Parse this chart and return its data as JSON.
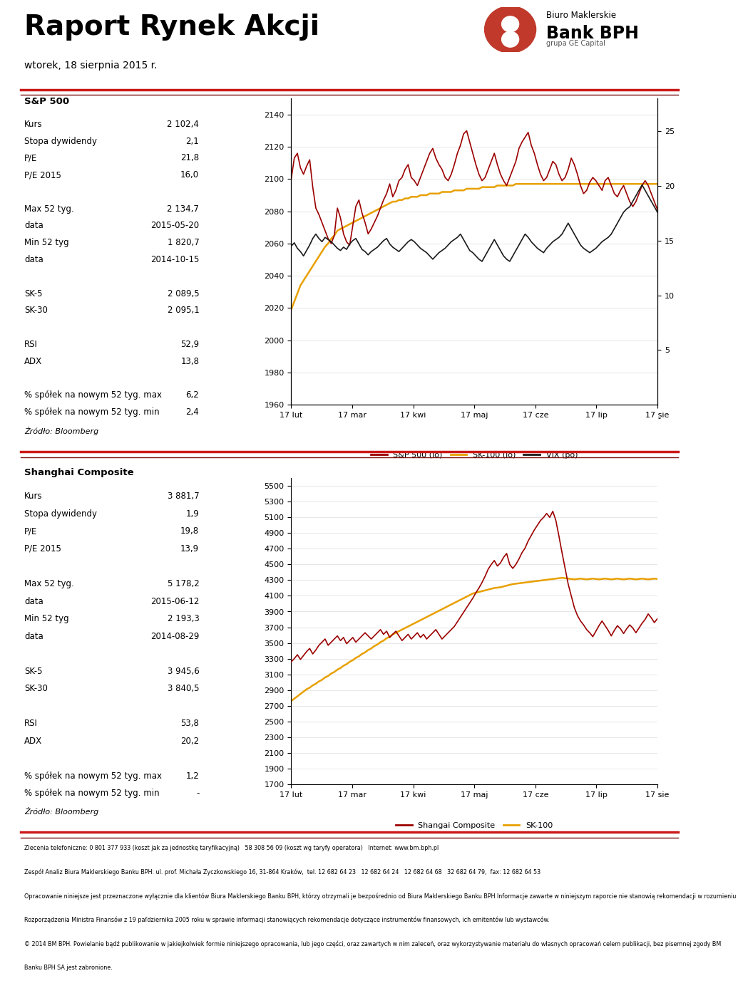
{
  "title": "Raport Rynek Akcji",
  "date": "wtorek, 18 sierpnia 2015 r.",
  "logo_text1": "Biuro Maklerskie",
  "logo_text2": "Bank BPH",
  "logo_text3": "grupa GE Capital",
  "sp500_label": "S&P 500",
  "sp500_data": [
    {
      "label": "Kurs",
      "value": "2 102,4"
    },
    {
      "label": "Stopa dywidendy",
      "value": "2,1"
    },
    {
      "label": "P/E",
      "value": "21,8"
    },
    {
      "label": "P/E 2015",
      "value": "16,0"
    },
    {
      "label": "",
      "value": ""
    },
    {
      "label": "Max 52 tyg.",
      "value": "2 134,7"
    },
    {
      "label": "data",
      "value": "2015-05-20"
    },
    {
      "label": "Min 52 tyg",
      "value": "1 820,7"
    },
    {
      "label": "data",
      "value": "2014-10-15"
    },
    {
      "label": "",
      "value": ""
    },
    {
      "label": "SK-5",
      "value": "2 089,5"
    },
    {
      "label": "SK-30",
      "value": "2 095,1"
    },
    {
      "label": "",
      "value": ""
    },
    {
      "label": "RSI",
      "value": "52,9"
    },
    {
      "label": "ADX",
      "value": "13,8"
    },
    {
      "label": "",
      "value": ""
    },
    {
      "label": "% spółek na nowym 52 tyg. max",
      "value": "6,2"
    },
    {
      "label": "% spółek na nowym 52 tyg. min",
      "value": "2,4"
    }
  ],
  "shanghai_label": "Shanghai Composite",
  "shanghai_data": [
    {
      "label": "Kurs",
      "value": "3 881,7"
    },
    {
      "label": "Stopa dywidendy",
      "value": "1,9"
    },
    {
      "label": "P/E",
      "value": "19,8"
    },
    {
      "label": "P/E 2015",
      "value": "13,9"
    },
    {
      "label": "",
      "value": ""
    },
    {
      "label": "Max 52 tyg.",
      "value": "5 178,2"
    },
    {
      "label": "data",
      "value": "2015-06-12"
    },
    {
      "label": "Min 52 tyg",
      "value": "2 193,3"
    },
    {
      "label": "data",
      "value": "2014-08-29"
    },
    {
      "label": "",
      "value": ""
    },
    {
      "label": "SK-5",
      "value": "3 945,6"
    },
    {
      "label": "SK-30",
      "value": "3 840,5"
    },
    {
      "label": "",
      "value": ""
    },
    {
      "label": "RSI",
      "value": "53,8"
    },
    {
      "label": "ADX",
      "value": "20,2"
    },
    {
      "label": "",
      "value": ""
    },
    {
      "label": "% spółek na nowym 52 tyg. max",
      "value": "1,2"
    },
    {
      "label": "% spółek na nowym 52 tyg. min",
      "value": "-"
    }
  ],
  "footer_source": "Źródło: Bloomberg",
  "footer_legal1": "Zlecenia telefoniczne: 0 801 377 933 (koszt jak za jednostkę taryfikacyjną)   58 308 56 09 (koszt wg taryfy operatora)   Internet: www.bm.bph.pl",
  "footer_legal2": "Zespół Analiz Biura Maklerskiego Banku BPH: ul. prof. Michała Zyczkowskiego 16, 31-864 Kraków,  tel. 12 682 64 23   12 682 64 24   12 682 64 68   32 682 64 79,  fax: 12 682 64 53",
  "footer_legal3": "Opracowanie niniejsze jest przeznaczone wyłącznie dla klientów Biura Maklerskiego Banku BPH, którzy otrzymali je bezpośrednio od Biura Maklerskiego Banku BPH Informacje zawarte w niniejszym raporcie nie stanowią rekomendacji w rozumieniu",
  "footer_legal4": "Rozporządzenia Ministra Finansów z 19 paſdziernika 2005 roku w sprawie informacji stanowiących rekomendacje dotyczące instrumentów finansowych, ich emitentów lub wystawców.",
  "footer_legal5": "© 2014 BM BPH. Powielanie bądź publikowanie w jakiejkolwiek formie niniejszego opracowania, lub jego części, oraz zawartych w nim zaleceń, oraz wykorzystywanie materiału do własnych opracowań celem publikacji, bez pisemnej zgody BM",
  "footer_legal6": "Banku BPH SA jest zabronione.",
  "sp500_xticks": [
    "17 lut",
    "17 mar",
    "17 kwi",
    "17 maj",
    "17 cze",
    "17 lip",
    "17 sie"
  ],
  "sp500_yleft_ticks": [
    1960,
    1980,
    2000,
    2020,
    2040,
    2060,
    2080,
    2100,
    2120,
    2140
  ],
  "sp500_legend": [
    "S&P 500 (lo)",
    "SK-100 (lo)",
    "VIX (po)"
  ],
  "sp500_legend_colors": [
    "#9b0000",
    "#e8a000",
    "#1a1a1a"
  ],
  "sp500_sp_y": [
    2100,
    2113,
    2116,
    2107,
    2103,
    2108,
    2112,
    2095,
    2082,
    2078,
    2073,
    2068,
    2063,
    2060,
    2065,
    2082,
    2076,
    2066,
    2061,
    2059,
    2071,
    2083,
    2087,
    2079,
    2073,
    2066,
    2069,
    2073,
    2077,
    2082,
    2087,
    2091,
    2097,
    2089,
    2093,
    2099,
    2101,
    2106,
    2109,
    2101,
    2099,
    2096,
    2101,
    2106,
    2111,
    2116,
    2119,
    2113,
    2109,
    2106,
    2101,
    2099,
    2103,
    2109,
    2116,
    2121,
    2128,
    2130,
    2123,
    2116,
    2109,
    2103,
    2099,
    2101,
    2106,
    2111,
    2116,
    2109,
    2103,
    2099,
    2096,
    2101,
    2106,
    2111,
    2119,
    2123,
    2126,
    2129,
    2121,
    2116,
    2109,
    2103,
    2099,
    2101,
    2106,
    2111,
    2109,
    2103,
    2099,
    2101,
    2106,
    2113,
    2109,
    2103,
    2096,
    2091,
    2093,
    2098,
    2101,
    2099,
    2096,
    2093,
    2099,
    2101,
    2096,
    2091,
    2089,
    2093,
    2096,
    2091,
    2086,
    2083,
    2086,
    2091,
    2096,
    2099,
    2096,
    2091,
    2086,
    2081
  ],
  "sp500_sk_y": [
    2019,
    2024,
    2029,
    2034,
    2037,
    2040,
    2043,
    2046,
    2049,
    2052,
    2055,
    2058,
    2060,
    2063,
    2065,
    2068,
    2069,
    2070,
    2071,
    2072,
    2073,
    2074,
    2075,
    2076,
    2077,
    2078,
    2079,
    2080,
    2081,
    2082,
    2083,
    2084,
    2085,
    2086,
    2086,
    2087,
    2087,
    2088,
    2088,
    2089,
    2089,
    2089,
    2090,
    2090,
    2090,
    2091,
    2091,
    2091,
    2091,
    2092,
    2092,
    2092,
    2092,
    2093,
    2093,
    2093,
    2093,
    2094,
    2094,
    2094,
    2094,
    2094,
    2095,
    2095,
    2095,
    2095,
    2095,
    2096,
    2096,
    2096,
    2096,
    2096,
    2096,
    2097,
    2097,
    2097,
    2097,
    2097,
    2097,
    2097,
    2097,
    2097,
    2097,
    2097,
    2097,
    2097,
    2097,
    2097,
    2097,
    2097,
    2097,
    2097,
    2097,
    2097,
    2097,
    2097,
    2097,
    2097,
    2097,
    2097,
    2097,
    2097,
    2097,
    2097,
    2097,
    2097,
    2097,
    2097,
    2097,
    2097,
    2097,
    2097,
    2097,
    2097,
    2097,
    2097,
    2097,
    2097,
    2097,
    2097
  ],
  "sp500_vix_y": [
    14.5,
    14.8,
    14.3,
    14.0,
    13.6,
    14.1,
    14.6,
    15.2,
    15.6,
    15.2,
    14.9,
    15.3,
    15.1,
    14.9,
    14.6,
    14.3,
    14.1,
    14.4,
    14.2,
    14.7,
    15.0,
    15.2,
    14.7,
    14.2,
    14.0,
    13.7,
    14.0,
    14.2,
    14.4,
    14.7,
    15.0,
    15.2,
    14.7,
    14.4,
    14.2,
    14.0,
    14.3,
    14.6,
    14.9,
    15.1,
    14.9,
    14.6,
    14.3,
    14.1,
    13.9,
    13.6,
    13.3,
    13.6,
    13.9,
    14.1,
    14.3,
    14.6,
    14.9,
    15.1,
    15.3,
    15.6,
    15.1,
    14.6,
    14.1,
    13.9,
    13.6,
    13.3,
    13.1,
    13.6,
    14.1,
    14.6,
    15.1,
    14.6,
    14.1,
    13.6,
    13.3,
    13.1,
    13.6,
    14.1,
    14.6,
    15.1,
    15.6,
    15.3,
    14.9,
    14.6,
    14.3,
    14.1,
    13.9,
    14.3,
    14.6,
    14.9,
    15.1,
    15.3,
    15.6,
    16.1,
    16.6,
    16.1,
    15.6,
    15.1,
    14.6,
    14.3,
    14.1,
    13.9,
    14.1,
    14.3,
    14.6,
    14.9,
    15.1,
    15.3,
    15.6,
    16.1,
    16.6,
    17.1,
    17.6,
    17.9,
    18.1,
    18.6,
    19.1,
    19.6,
    20.1,
    19.6,
    19.1,
    18.6,
    18.1,
    17.6
  ],
  "shanghai_xticks": [
    "17 lut",
    "17 mar",
    "17 kwi",
    "17 maj",
    "17 cze",
    "17 lip",
    "17 sie"
  ],
  "shanghai_yleft_ticks": [
    1700,
    1900,
    2100,
    2300,
    2500,
    2700,
    2900,
    3100,
    3300,
    3500,
    3700,
    3900,
    4100,
    4300,
    4500,
    4700,
    4900,
    5100,
    5300,
    5500
  ],
  "shanghai_legend": [
    "Shangai Composite",
    "SK-100"
  ],
  "shanghai_legend_colors": [
    "#9b0000",
    "#e8a000"
  ],
  "shanghai_comp_y": [
    3260,
    3300,
    3350,
    3290,
    3340,
    3390,
    3430,
    3360,
    3410,
    3470,
    3510,
    3550,
    3470,
    3510,
    3550,
    3590,
    3530,
    3570,
    3490,
    3530,
    3570,
    3510,
    3550,
    3590,
    3630,
    3590,
    3550,
    3590,
    3630,
    3670,
    3610,
    3650,
    3570,
    3610,
    3650,
    3590,
    3530,
    3570,
    3610,
    3550,
    3590,
    3630,
    3570,
    3610,
    3550,
    3590,
    3630,
    3670,
    3610,
    3550,
    3590,
    3630,
    3670,
    3710,
    3770,
    3830,
    3890,
    3950,
    4010,
    4070,
    4140,
    4200,
    4270,
    4350,
    4440,
    4500,
    4550,
    4480,
    4520,
    4590,
    4640,
    4500,
    4450,
    4500,
    4570,
    4650,
    4710,
    4800,
    4870,
    4940,
    5000,
    5060,
    5100,
    5150,
    5100,
    5178,
    5060,
    4860,
    4650,
    4450,
    4250,
    4100,
    3950,
    3850,
    3780,
    3730,
    3670,
    3630,
    3580,
    3650,
    3720,
    3780,
    3720,
    3660,
    3590,
    3660,
    3720,
    3680,
    3620,
    3680,
    3730,
    3690,
    3630,
    3690,
    3750,
    3800,
    3870,
    3820,
    3760,
    3810
  ],
  "shanghai_sk_y": [
    2760,
    2790,
    2820,
    2850,
    2880,
    2910,
    2930,
    2960,
    2980,
    3010,
    3030,
    3060,
    3080,
    3110,
    3130,
    3160,
    3180,
    3210,
    3230,
    3260,
    3280,
    3310,
    3330,
    3360,
    3380,
    3410,
    3430,
    3460,
    3480,
    3510,
    3530,
    3560,
    3580,
    3610,
    3630,
    3650,
    3670,
    3690,
    3710,
    3730,
    3750,
    3770,
    3790,
    3810,
    3830,
    3850,
    3870,
    3890,
    3910,
    3930,
    3950,
    3970,
    3990,
    4010,
    4030,
    4050,
    4070,
    4090,
    4110,
    4130,
    4140,
    4150,
    4160,
    4170,
    4180,
    4190,
    4200,
    4205,
    4210,
    4220,
    4230,
    4240,
    4250,
    4255,
    4260,
    4265,
    4270,
    4275,
    4280,
    4285,
    4290,
    4295,
    4300,
    4305,
    4310,
    4315,
    4320,
    4325,
    4330,
    4325,
    4320,
    4315,
    4310,
    4315,
    4320,
    4315,
    4310,
    4315,
    4320,
    4315,
    4310,
    4315,
    4320,
    4315,
    4310,
    4315,
    4320,
    4315,
    4310,
    4315,
    4320,
    4315,
    4310,
    4315,
    4320,
    4315,
    4310,
    4315,
    4320,
    4315
  ],
  "red_color": "#9b0000",
  "orange_color": "#e8a000",
  "black_color": "#1a1a1a",
  "divider_red": "#cc1a1a",
  "divider_dark": "#7a1010"
}
